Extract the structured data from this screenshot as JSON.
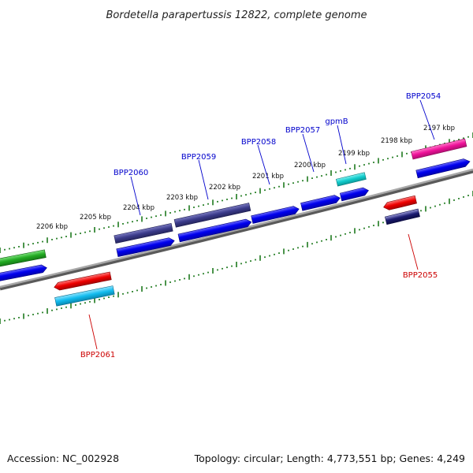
{
  "title": "Bordetella parapertussis 12822, complete genome",
  "footer": {
    "accession": "Accession: NC_002928",
    "summary": "Topology: circular; Length: 4,773,551 bp; Genes: 4,249"
  },
  "ruler_labels": [
    "2197 kbp",
    "2198 kbp",
    "2199 kbp",
    "2200 kbp",
    "2201 kbp",
    "2202 kbp",
    "2203 kbp",
    "2204 kbp",
    "2205 kbp",
    "2206 kbp"
  ],
  "gene_labels": {
    "BPP2054": "BPP2054",
    "gpmB": "gpmB",
    "BPP2057": "BPP2057",
    "BPP2058": "BPP2058",
    "BPP2059": "BPP2059",
    "BPP2060": "BPP2060",
    "BPP2055": "BPP2055",
    "BPP2061": "BPP2061"
  },
  "colors": {
    "label_forward": "#0000cc",
    "label_reverse": "#cc0000",
    "ruler": "#1f7a1f",
    "backbone": "#808080",
    "cds_blue": "#0000ee",
    "gene_magenta": "#ee1199",
    "gene_cyan": "#11cccc",
    "gene_slate": "#3a3a8a",
    "gene_red": "#ee0000",
    "gene_sky": "#11bbee",
    "gene_green": "#22aa22"
  }
}
